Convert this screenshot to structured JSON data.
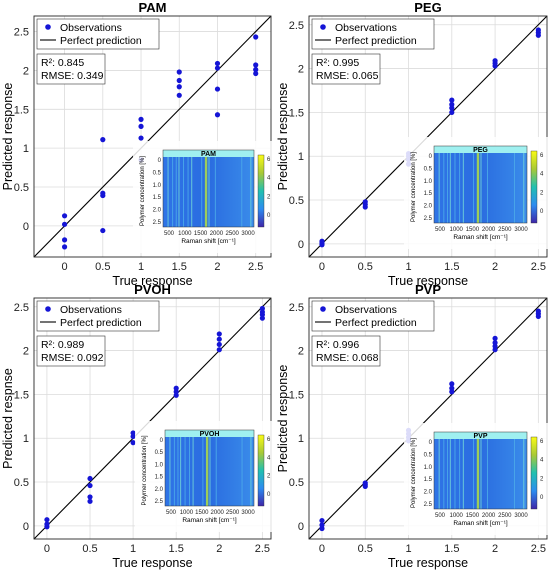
{
  "chart_data": [
    {
      "type": "scatter",
      "title": "PAM",
      "xlabel": "True response",
      "ylabel": "Predicted response",
      "xlim": [
        -0.4,
        2.7
      ],
      "ylim": [
        -0.4,
        2.7
      ],
      "xticks": [
        "0",
        "0.5",
        "1",
        "1.5",
        "2",
        "2.5"
      ],
      "yticks": [
        "0",
        "0.5",
        "1",
        "1.5",
        "2",
        "2.5"
      ],
      "grid": true,
      "legend": {
        "position": "top-left",
        "entries": [
          "Observations",
          "Perfect prediction"
        ]
      },
      "stats": [
        "R²: 0.845",
        "RMSE: 0.349"
      ],
      "series": [
        {
          "name": "Observations",
          "x": [
            0,
            0,
            0,
            0,
            0.5,
            0.5,
            0.5,
            0.5,
            1,
            1,
            1,
            1,
            1.5,
            1.5,
            1.5,
            1.5,
            2,
            2,
            2,
            2,
            2.5,
            2.5,
            2.5,
            2.5
          ],
          "y": [
            -0.27,
            -0.18,
            0.02,
            0.13,
            -0.06,
            0.39,
            0.42,
            1.11,
            0.85,
            1.13,
            1.28,
            1.37,
            1.68,
            1.79,
            1.87,
            1.98,
            1.43,
            1.76,
            2.03,
            2.09,
            1.96,
            2.01,
            2.07,
            2.43
          ]
        },
        {
          "name": "Perfect prediction",
          "x": [
            -0.4,
            2.7
          ],
          "y": [
            -0.4,
            2.7
          ]
        }
      ],
      "inset": {
        "title": "PAM",
        "xlabel": "Raman shift [cm⁻¹]",
        "ylabel": "Polymer concentration [%]",
        "xticks": [
          "500",
          "1000",
          "1500",
          "2000",
          "2500",
          "3000"
        ],
        "yticks": [
          "0",
          "0.5",
          "1.0",
          "1.5",
          "2.0",
          "2.5"
        ],
        "colorbar_ticks": [
          "6",
          "4",
          "2",
          "0"
        ]
      }
    },
    {
      "type": "scatter",
      "title": "PEG",
      "xlabel": "True response",
      "ylabel": "Predicted response",
      "xlim": [
        -0.15,
        2.6
      ],
      "ylim": [
        -0.15,
        2.6
      ],
      "xticks": [
        "0",
        "0.5",
        "1",
        "1.5",
        "2",
        "2.5"
      ],
      "yticks": [
        "0",
        "0.5",
        "1",
        "1.5",
        "2",
        "2.5"
      ],
      "grid": true,
      "legend": {
        "position": "top-left",
        "entries": [
          "Observations",
          "Perfect prediction"
        ]
      },
      "stats": [
        "R²: 0.995",
        "RMSE: 0.065"
      ],
      "series": [
        {
          "name": "Observations",
          "x": [
            0,
            0,
            0,
            0.5,
            0.5,
            0.5,
            1,
            1,
            1,
            1,
            1.5,
            1.5,
            1.5,
            1.5,
            2,
            2,
            2,
            2.5,
            2.5,
            2.5
          ],
          "y": [
            -0.01,
            0.01,
            0.03,
            0.42,
            0.45,
            0.48,
            0.91,
            0.96,
            1.0,
            1.03,
            1.5,
            1.55,
            1.59,
            1.64,
            2.03,
            2.06,
            2.09,
            2.38,
            2.41,
            2.44
          ]
        },
        {
          "name": "Perfect prediction",
          "x": [
            -0.15,
            2.6
          ],
          "y": [
            -0.15,
            2.6
          ]
        }
      ],
      "inset": {
        "title": "PEG",
        "xlabel": "Raman shift [cm⁻¹]",
        "ylabel": "Polymer concentration [%]",
        "xticks": [
          "500",
          "1000",
          "1500",
          "2000",
          "2500",
          "3000"
        ],
        "yticks": [
          "0",
          "0.5",
          "1.0",
          "1.5",
          "2.0",
          "2.5"
        ],
        "colorbar_ticks": [
          "6",
          "4",
          "2",
          "0"
        ]
      }
    },
    {
      "type": "scatter",
      "title": "PVOH",
      "xlabel": "True response",
      "ylabel": "Predicted respnse",
      "xlim": [
        -0.15,
        2.6
      ],
      "ylim": [
        -0.15,
        2.6
      ],
      "xticks": [
        "0",
        "0.5",
        "1",
        "1.5",
        "2",
        "2.5"
      ],
      "yticks": [
        "0",
        "0.5",
        "1",
        "1.5",
        "2",
        "2.5"
      ],
      "grid": true,
      "legend": {
        "position": "top-left",
        "entries": [
          "Observations",
          "Perfect prediction"
        ]
      },
      "stats": [
        "R²: 0.989",
        "RMSE: 0.092"
      ],
      "series": [
        {
          "name": "Observations",
          "x": [
            0,
            0,
            0,
            0.5,
            0.5,
            0.5,
            0.5,
            1,
            1,
            1,
            1.5,
            1.5,
            1.5,
            2,
            2,
            2,
            2,
            2.5,
            2.5,
            2.5,
            2.5
          ],
          "y": [
            -0.01,
            0.02,
            0.07,
            0.28,
            0.33,
            0.46,
            0.54,
            0.95,
            1.02,
            1.06,
            1.49,
            1.53,
            1.57,
            2.01,
            2.07,
            2.13,
            2.19,
            2.37,
            2.41,
            2.44,
            2.48
          ]
        },
        {
          "name": "Perfect prediction",
          "x": [
            -0.15,
            2.6
          ],
          "y": [
            -0.15,
            2.6
          ]
        }
      ],
      "inset": {
        "title": "PVOH",
        "xlabel": "Raman shift [cm⁻¹]",
        "ylabel": "Polymer concentration [%]",
        "xticks": [
          "500",
          "1000",
          "1500",
          "2000",
          "2500",
          "3000"
        ],
        "yticks": [
          "0",
          "0.5",
          "1.0",
          "1.5",
          "2.0",
          "2.5"
        ],
        "colorbar_ticks": [
          "6",
          "4",
          "2",
          "0"
        ]
      }
    },
    {
      "type": "scatter",
      "title": "PVP",
      "xlabel": "True response",
      "ylabel": "Predicted response",
      "xlim": [
        -0.15,
        2.6
      ],
      "ylim": [
        -0.15,
        2.6
      ],
      "xticks": [
        "0",
        "0.5",
        "1",
        "1.5",
        "2",
        "2.5"
      ],
      "yticks": [
        "0",
        "0.5",
        "1",
        "1.5",
        "2",
        "2.5"
      ],
      "grid": true,
      "legend": {
        "position": "top-left",
        "entries": [
          "Observations",
          "Perfect prediction"
        ]
      },
      "stats": [
        "R²: 0.996",
        "RMSE: 0.068"
      ],
      "series": [
        {
          "name": "Observations",
          "x": [
            0,
            0,
            0,
            0.5,
            0.5,
            0.5,
            1,
            1,
            1,
            1,
            1.5,
            1.5,
            1.5,
            2,
            2,
            2,
            2,
            2.5,
            2.5,
            2.5
          ],
          "y": [
            -0.03,
            0.01,
            0.06,
            0.45,
            0.47,
            0.49,
            0.97,
            1.01,
            1.05,
            1.09,
            1.53,
            1.57,
            1.62,
            2.01,
            2.05,
            2.09,
            2.14,
            2.39,
            2.42,
            2.45
          ]
        },
        {
          "name": "Perfect prediction",
          "x": [
            -0.15,
            2.6
          ],
          "y": [
            -0.15,
            2.6
          ]
        }
      ],
      "inset": {
        "title": "PVP",
        "xlabel": "Raman shift [cm⁻¹]",
        "ylabel": "Polymer concentration [%]",
        "xticks": [
          "500",
          "1000",
          "1500",
          "2000",
          "2500",
          "3000"
        ],
        "yticks": [
          "0",
          "0.5",
          "1.0",
          "1.5",
          "2.0",
          "2.5"
        ],
        "colorbar_ticks": [
          "6",
          "4",
          "2",
          "0"
        ]
      }
    }
  ],
  "colors": {
    "observation": "#1515d6",
    "line": "#000000",
    "grid": "#dcdcdc",
    "frame": "#262626"
  }
}
